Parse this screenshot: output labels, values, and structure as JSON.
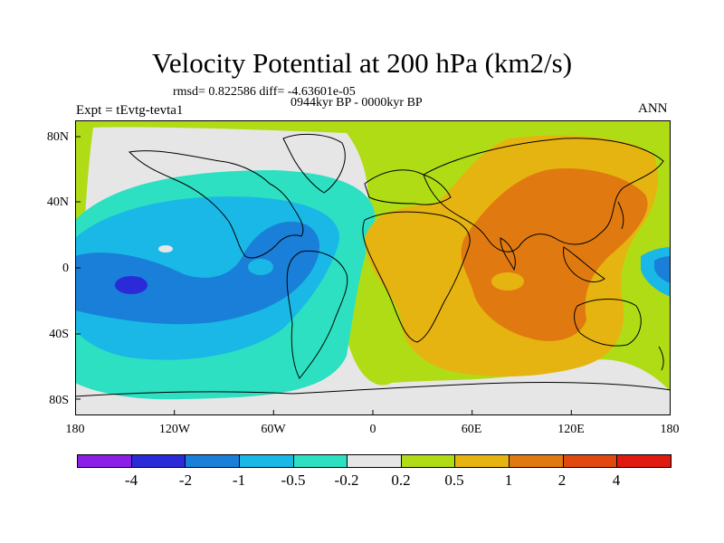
{
  "title": "Velocity Potential at 200 hPa (km2/s)",
  "stats": "rmsd= 0.822586 diff= -4.63601e-05",
  "period": "0944kyr BP - 0000kyr BP",
  "experiment": "Expt = tEvtg-tevta1",
  "season": "ANN",
  "lat_labels": [
    "80N",
    "40N",
    "0",
    "40S",
    "80S"
  ],
  "lon_labels": [
    "180",
    "120W",
    "60W",
    "0",
    "60E",
    "120E",
    "180"
  ],
  "colorbar": {
    "colors": [
      "#8a1fe6",
      "#2a2ad8",
      "#1a7fd8",
      "#19b8e6",
      "#2de0c2",
      "#e6e6e6",
      "#b0dc16",
      "#e6b410",
      "#e07a10",
      "#e04810",
      "#e01a10"
    ],
    "labels": [
      "-4",
      "-2",
      "-1",
      "-0.5",
      "-0.2",
      "0.2",
      "0.5",
      "1",
      "2",
      "4"
    ]
  },
  "fields": {
    "land": "#b0dc16",
    "neutral": "#e6e6e6",
    "neg_weak": "#2de0c2",
    "neg_mid": "#19b8e6",
    "neg_strong": "#1a7fd8",
    "neg_max": "#2a2ad8",
    "pos_weak": "#b0dc16",
    "pos_mid": "#e6b410",
    "pos_strong": "#e07a10"
  }
}
